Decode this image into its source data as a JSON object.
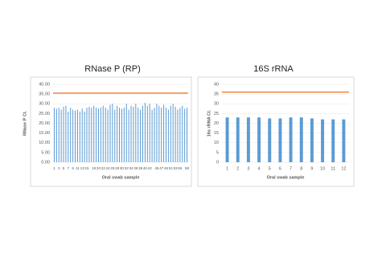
{
  "chart_data": [
    {
      "type": "bar",
      "title": "RNase P (RP)",
      "xlabel": "Oral swab sample",
      "ylabel": "RNase P Ct.",
      "categories": [
        1,
        null,
        3,
        null,
        5,
        null,
        7,
        null,
        9,
        null,
        11,
        null,
        13,
        null,
        15,
        null,
        null,
        18,
        null,
        20,
        null,
        22,
        null,
        24,
        null,
        26,
        null,
        28,
        null,
        30,
        null,
        32,
        null,
        34,
        null,
        36,
        null,
        38,
        null,
        40,
        null,
        42,
        null,
        null,
        45,
        null,
        47,
        null,
        49,
        null,
        51,
        null,
        53,
        null,
        55,
        null,
        null,
        58
      ],
      "values": [
        28,
        27.5,
        28,
        27,
        28.5,
        29,
        26,
        28,
        27,
        26.5,
        27,
        26,
        27.5,
        26,
        28,
        28.5,
        28,
        29,
        28,
        27.5,
        28,
        29,
        28,
        27,
        29.5,
        30,
        27,
        29,
        28,
        27.5,
        28,
        30,
        27,
        29,
        28.5,
        30,
        28,
        27,
        29,
        30.5,
        29,
        30,
        27,
        28,
        30,
        29,
        28,
        29.5,
        28,
        27,
        29,
        30,
        28.5,
        27,
        28,
        29,
        27.5,
        28
      ],
      "color": "#5b9bd5",
      "threshold": 35.5,
      "threshold_color": "#ed7d31",
      "ylim": [
        0,
        40
      ],
      "yticks": [
        {
          "value": 0,
          "label": "0.00"
        },
        {
          "value": 5,
          "label": "5.00"
        },
        {
          "value": 10,
          "label": "10.00"
        },
        {
          "value": 15,
          "label": "15.00"
        },
        {
          "value": 20,
          "label": "20.00"
        },
        {
          "value": 25,
          "label": "25.00"
        },
        {
          "value": 30,
          "label": "30.00"
        },
        {
          "value": 35,
          "label": "35.00"
        },
        {
          "value": 40,
          "label": "40.00"
        }
      ],
      "grid": true
    },
    {
      "type": "bar",
      "title": "16S rRNA",
      "xlabel": "Oral swab sample",
      "ylabel": "16s rRNA Ct.",
      "categories": [
        1,
        2,
        3,
        4,
        5,
        6,
        7,
        8,
        9,
        10,
        11,
        12
      ],
      "values": [
        23,
        23,
        23,
        23,
        22.5,
        22.5,
        23,
        23,
        22.5,
        22,
        22,
        22
      ],
      "color": "#5b9bd5",
      "threshold": 36,
      "threshold_color": "#ed7d31",
      "ylim": [
        0,
        40
      ],
      "yticks": [
        0,
        5,
        10,
        15,
        20,
        25,
        30,
        35,
        40
      ],
      "grid": true
    }
  ]
}
